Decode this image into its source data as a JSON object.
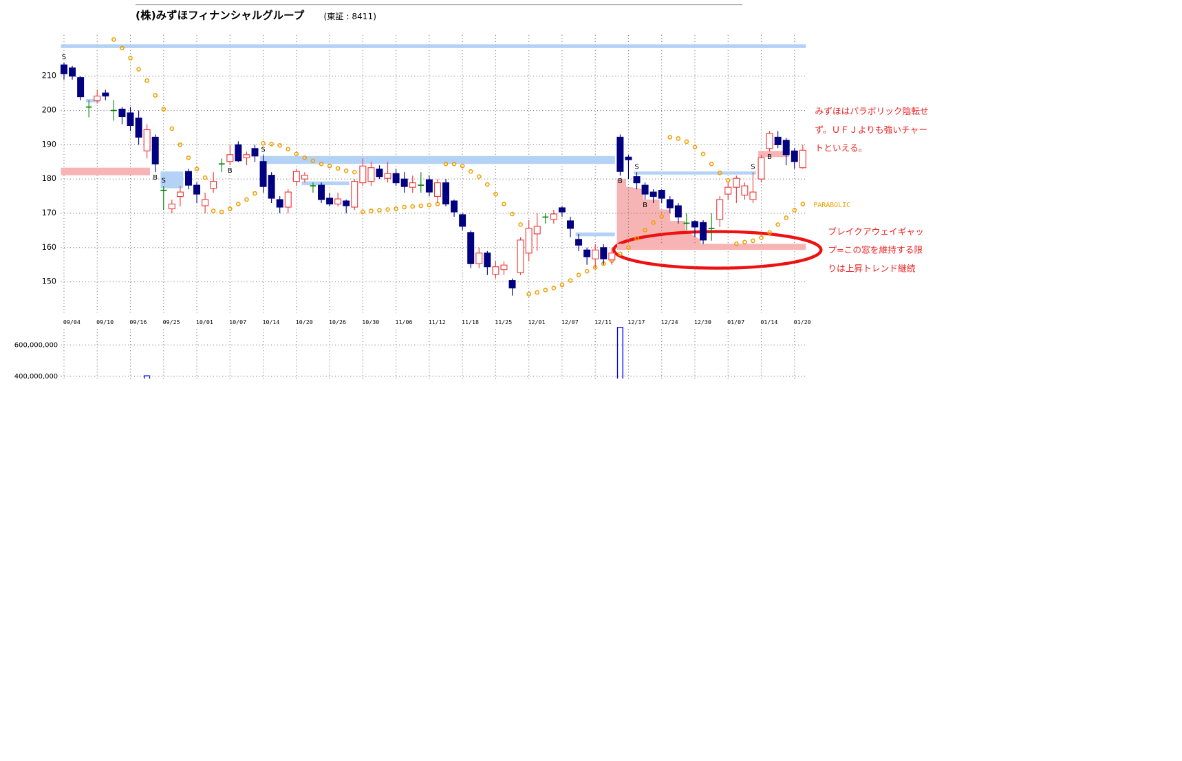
{
  "chart_data": {
    "type": "candlestick",
    "title": "(株)みずほフィナンシャルグループ",
    "subtitle": "(東証 : 8411)",
    "categories": [
      "09/04",
      null,
      null,
      null,
      "09/10",
      null,
      null,
      null,
      "09/16",
      null,
      null,
      null,
      "09/25",
      null,
      null,
      null,
      "10/01",
      null,
      null,
      null,
      "10/07",
      null,
      null,
      null,
      "10/14",
      null,
      null,
      null,
      "10/20",
      null,
      null,
      null,
      "10/26",
      null,
      null,
      null,
      "10/30",
      null,
      null,
      null,
      "11/06",
      null,
      null,
      null,
      "11/12",
      null,
      null,
      null,
      "11/18",
      null,
      null,
      null,
      "11/25",
      null,
      null,
      null,
      "12/01",
      null,
      null,
      null,
      "12/07",
      null,
      null,
      null,
      "12/11",
      null,
      null,
      null,
      "12/17",
      null,
      null,
      null,
      "12/24",
      null,
      null,
      null,
      "12/30",
      null,
      null,
      null,
      "01/07",
      null,
      null,
      null,
      "01/14",
      null,
      null,
      null,
      "01/20",
      null
    ],
    "open": [
      213.3,
      212.4,
      209.6,
      201,
      202.9,
      205.1,
      200,
      200.4,
      199.3,
      197.8,
      188.2,
      192.2,
      176.7,
      171.3,
      174.9,
      182.2,
      178.2,
      172.2,
      177.3,
      184.4,
      185.1,
      190,
      186.2,
      188.9,
      185.1,
      181.1,
      174,
      171.8,
      179.3,
      180,
      178,
      178.2,
      174.4,
      172.7,
      173.6,
      171.8,
      178.9,
      179.3,
      182.9,
      180.2,
      181.6,
      180,
      177.6,
      178.2,
      179.8,
      174.9,
      178.9,
      173.6,
      169.6,
      164.4,
      155.3,
      158.4,
      152.2,
      153.6,
      150.4,
      152.7,
      158.4,
      164,
      168.9,
      168.2,
      171.6,
      167.8,
      162.4,
      159.3,
      156.7,
      160,
      156.4,
      192.2,
      186.4,
      180.7,
      178.2,
      176.2,
      176.7,
      174,
      172.2,
      167.1,
      167.6,
      167.3,
      165.6,
      168.2,
      175.6,
      177.6,
      175.3,
      174,
      180,
      188.9,
      192.2,
      191.3,
      188.2,
      183.3
    ],
    "high": [
      214,
      213,
      210,
      203,
      206,
      206,
      203,
      201,
      201,
      200,
      196,
      193,
      178,
      174,
      178,
      183,
      179,
      176,
      182,
      186,
      190,
      191,
      188,
      190,
      187,
      182,
      175,
      177,
      183,
      182,
      179,
      179,
      176,
      176,
      174,
      180,
      186,
      185,
      184,
      185,
      183,
      182,
      181,
      182,
      181,
      180,
      180,
      174,
      170,
      165,
      160,
      159,
      156,
      156,
      151,
      163,
      168,
      170,
      170,
      171,
      172,
      169,
      164,
      160,
      161,
      161,
      160,
      193,
      187,
      182,
      179,
      177,
      177,
      175,
      173,
      170,
      168,
      168,
      170,
      175,
      179,
      181,
      179,
      182,
      187,
      194,
      194,
      192,
      189,
      190
    ],
    "low": [
      209,
      209,
      203,
      198,
      202,
      203,
      197,
      196,
      194,
      190,
      186,
      182,
      171,
      170,
      172,
      177,
      173,
      170,
      176,
      182,
      184,
      185,
      184,
      185,
      176,
      173,
      170,
      170,
      178,
      179,
      176,
      173,
      172,
      172,
      170,
      171,
      178,
      178,
      180,
      179,
      178,
      176,
      176,
      176,
      175,
      173,
      172,
      169,
      165,
      154,
      154,
      152,
      151,
      152,
      146,
      152,
      156,
      159,
      167,
      167,
      169,
      163,
      159,
      155,
      154,
      155,
      155,
      181,
      180,
      177,
      174,
      173,
      173,
      170,
      167,
      165,
      163,
      161,
      162,
      166,
      174,
      173,
      174,
      173,
      179,
      188,
      189,
      184,
      183,
      183
    ],
    "close": [
      210.7,
      210,
      204,
      201,
      204.2,
      204.2,
      200,
      198.2,
      195.6,
      192.2,
      194.4,
      184.4,
      176.7,
      172.7,
      176.2,
      178.2,
      175.6,
      174,
      179.3,
      184.4,
      187.1,
      185.3,
      187.1,
      186.7,
      177.8,
      174.4,
      171.8,
      176.2,
      182.2,
      181.1,
      178,
      174,
      172.7,
      174.2,
      172.2,
      179.3,
      183.8,
      183.3,
      180.7,
      181.6,
      178.9,
      177.8,
      178.9,
      178.2,
      176.2,
      178.9,
      172.7,
      170.4,
      166.2,
      155.3,
      158.4,
      154.4,
      154.4,
      154.9,
      148.2,
      162.2,
      165.6,
      166.2,
      168.9,
      169.8,
      170.4,
      165.6,
      160.7,
      157.3,
      159.3,
      156.7,
      158.4,
      182.2,
      185.6,
      178.9,
      175.6,
      174.9,
      174.4,
      171.6,
      168.9,
      167.1,
      166,
      162.2,
      165.6,
      174,
      177.6,
      180.2,
      178,
      176.2,
      186.2,
      193.3,
      190,
      187.1,
      185.1,
      188.4
    ],
    "up_color": "#ee3333",
    "down_color": "#000080",
    "doji_color": "#008000",
    "ylim": [
      141,
      222
    ],
    "yticks": [
      150,
      160,
      170,
      180,
      190,
      200,
      210
    ],
    "grid": true,
    "signals": [
      "S",
      null,
      null,
      null,
      null,
      null,
      null,
      null,
      null,
      null,
      null,
      "B",
      "S",
      null,
      null,
      null,
      null,
      null,
      null,
      null,
      "B",
      null,
      null,
      null,
      "S",
      null,
      null,
      null,
      null,
      null,
      null,
      null,
      null,
      null,
      null,
      null,
      null,
      null,
      null,
      null,
      null,
      null,
      null,
      null,
      null,
      null,
      null,
      null,
      null,
      null,
      null,
      null,
      null,
      null,
      null,
      null,
      null,
      null,
      null,
      null,
      null,
      null,
      null,
      null,
      null,
      null,
      null,
      "B",
      null,
      "S",
      "B",
      null,
      null,
      null,
      null,
      null,
      null,
      null,
      null,
      null,
      null,
      null,
      null,
      "S",
      null,
      "B",
      null,
      null,
      null,
      null
    ],
    "parabolic": {
      "name": "PARABOLIC",
      "color": "#f0a000",
      "values": [
        null,
        null,
        null,
        null,
        null,
        null,
        220.7,
        218.2,
        215.3,
        212,
        208.7,
        204.4,
        200.4,
        194.7,
        190,
        186.2,
        182.9,
        180.4,
        170.7,
        170.4,
        171.3,
        172.7,
        174,
        175.8,
        190.4,
        190.2,
        189.8,
        188.7,
        187.3,
        186.2,
        185.3,
        184.4,
        183.8,
        183.1,
        182.4,
        182,
        170.4,
        170.7,
        170.9,
        171.1,
        171.3,
        171.8,
        172,
        172.2,
        172.4,
        172.7,
        184.4,
        184.4,
        183.8,
        182.2,
        180.7,
        178.4,
        175.6,
        172.7,
        169.8,
        166.7,
        146.4,
        146.9,
        147.6,
        148.2,
        149.1,
        150.4,
        152,
        153.1,
        154.2,
        155.3,
        156.2,
        158.2,
        160,
        162.7,
        165.1,
        167.3,
        169.1,
        192.2,
        191.8,
        190.9,
        189.3,
        187.3,
        184.4,
        181.8,
        179.6,
        161.1,
        161.6,
        162,
        162.9,
        164.4,
        166.7,
        168.7,
        170.9,
        172.7
      ]
    },
    "zones": [
      {
        "from": 0,
        "to": 89,
        "low": 218.2,
        "high": 219.3,
        "color": "#b4d2f5"
      },
      {
        "from": 0,
        "to": 10,
        "low": 181.1,
        "high": 183.3,
        "color": "#f7b4b4"
      },
      {
        "from": 3,
        "to": 4,
        "low": 202.4,
        "high": 203.3,
        "color": "#b4d2f5"
      },
      {
        "from": 12,
        "to": 14,
        "low": 177.3,
        "high": 182.2,
        "color": "#b4d2f5"
      },
      {
        "from": 24,
        "to": 66,
        "low": 184.4,
        "high": 186.7,
        "color": "#b4d2f5"
      },
      {
        "from": 29,
        "to": 34,
        "low": 178.2,
        "high": 179.3,
        "color": "#b4d2f5"
      },
      {
        "from": 62,
        "to": 66,
        "low": 163.3,
        "high": 164.4,
        "color": "#b4d2f5"
      },
      {
        "from": 69,
        "to": 83,
        "low": 181.3,
        "high": 182.2,
        "color": "#b4d2f5"
      },
      {
        "from": 84,
        "to": 87,
        "low": 186.4,
        "high": 188.2,
        "color": "#f7b4b4"
      },
      {
        "from": 67,
        "to": 89,
        "low": 159.3,
        "high": 161.1,
        "color": "#f7b4b4"
      }
    ],
    "annotations": [
      {
        "color": "#ee2222",
        "lines": [
          "みずほはパラボリック陰転せ",
          "ず。ＵＦＪよりも強いチャー",
          "トといえる。"
        ]
      },
      {
        "color": "#ee2222",
        "lines": [
          "ブレイクアウェイギャッ",
          "プ=この窓を維持する限",
          "りは上昇トレンド継続"
        ]
      }
    ],
    "volume": {
      "color": "#0000ff",
      "ylim": [
        385000000,
        760000000
      ],
      "yticks": [
        {
          "value": 400000000,
          "label": "400,000,000"
        },
        {
          "value": 600000000,
          "label": "600,000,000"
        }
      ],
      "values": [
        null,
        null,
        null,
        null,
        null,
        null,
        null,
        null,
        null,
        null,
        403000000,
        null,
        null,
        null,
        null,
        null,
        null,
        null,
        null,
        null,
        null,
        null,
        null,
        null,
        null,
        null,
        null,
        null,
        null,
        null,
        null,
        null,
        null,
        null,
        null,
        null,
        null,
        null,
        null,
        null,
        null,
        null,
        null,
        null,
        null,
        null,
        null,
        null,
        null,
        null,
        null,
        null,
        null,
        null,
        null,
        null,
        null,
        null,
        null,
        null,
        null,
        null,
        null,
        null,
        null,
        null,
        null,
        712000000,
        null,
        null,
        null,
        null,
        null,
        null,
        null,
        null,
        null,
        null,
        null,
        null,
        null,
        null,
        null,
        null,
        null,
        null,
        null,
        null,
        null,
        null
      ]
    }
  }
}
